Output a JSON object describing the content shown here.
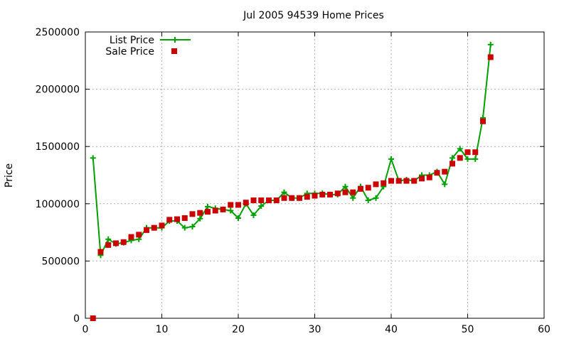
{
  "chart_data": {
    "type": "line",
    "title": "Jul 2005 94539 Home Prices",
    "xlabel": "",
    "ylabel": "Price",
    "xlim": [
      0,
      60
    ],
    "ylim": [
      0,
      2500000
    ],
    "x_ticks": [
      0,
      10,
      20,
      30,
      40,
      50,
      60
    ],
    "y_ticks": [
      0,
      500000,
      1000000,
      1500000,
      2000000,
      2500000
    ],
    "x_tick_labels": [
      "0",
      "10",
      "20",
      "30",
      "40",
      "50",
      "60"
    ],
    "y_tick_labels": [
      "0",
      "500000",
      "1000000",
      "1500000",
      "2000000",
      "2500000"
    ],
    "grid": true,
    "legend_position": "top-left",
    "series": [
      {
        "name": "List Price",
        "style": "linespoints",
        "marker": "plus",
        "color": "#00a000",
        "x": [
          1,
          2,
          3,
          4,
          5,
          6,
          7,
          8,
          9,
          10,
          11,
          12,
          13,
          14,
          15,
          16,
          17,
          18,
          19,
          20,
          21,
          22,
          23,
          24,
          25,
          26,
          27,
          28,
          29,
          30,
          31,
          32,
          33,
          34,
          35,
          36,
          37,
          38,
          39,
          40,
          41,
          42,
          43,
          44,
          45,
          46,
          47,
          48,
          49,
          50,
          51,
          52,
          53
        ],
        "values": [
          1400000,
          550000,
          690000,
          650000,
          660000,
          680000,
          690000,
          790000,
          790000,
          790000,
          850000,
          850000,
          790000,
          800000,
          870000,
          975000,
          960000,
          950000,
          940000,
          875000,
          1000000,
          900000,
          980000,
          1030000,
          1030000,
          1100000,
          1050000,
          1050000,
          1090000,
          1090000,
          1090000,
          1080000,
          1080000,
          1150000,
          1050000,
          1150000,
          1030000,
          1050000,
          1150000,
          1390000,
          1200000,
          1210000,
          1200000,
          1250000,
          1250000,
          1280000,
          1170000,
          1400000,
          1480000,
          1390000,
          1390000,
          1750000,
          2390000
        ]
      },
      {
        "name": "Sale Price",
        "style": "points",
        "marker": "square",
        "color": "#cc0000",
        "x": [
          1,
          2,
          3,
          4,
          5,
          6,
          7,
          8,
          9,
          10,
          11,
          12,
          13,
          14,
          15,
          16,
          17,
          18,
          19,
          20,
          21,
          22,
          23,
          24,
          25,
          26,
          27,
          28,
          29,
          30,
          31,
          32,
          33,
          34,
          35,
          36,
          37,
          38,
          39,
          40,
          41,
          42,
          43,
          44,
          45,
          46,
          47,
          48,
          49,
          50,
          51,
          52,
          53
        ],
        "values": [
          0,
          580000,
          640000,
          655000,
          665000,
          710000,
          730000,
          770000,
          790000,
          810000,
          860000,
          865000,
          875000,
          910000,
          920000,
          930000,
          940000,
          950000,
          990000,
          990000,
          1010000,
          1030000,
          1030000,
          1030000,
          1030000,
          1050000,
          1050000,
          1050000,
          1060000,
          1070000,
          1080000,
          1080000,
          1090000,
          1100000,
          1100000,
          1130000,
          1140000,
          1170000,
          1180000,
          1200000,
          1200000,
          1200000,
          1200000,
          1220000,
          1230000,
          1270000,
          1280000,
          1350000,
          1400000,
          1450000,
          1450000,
          1720000,
          2280000
        ]
      }
    ]
  }
}
